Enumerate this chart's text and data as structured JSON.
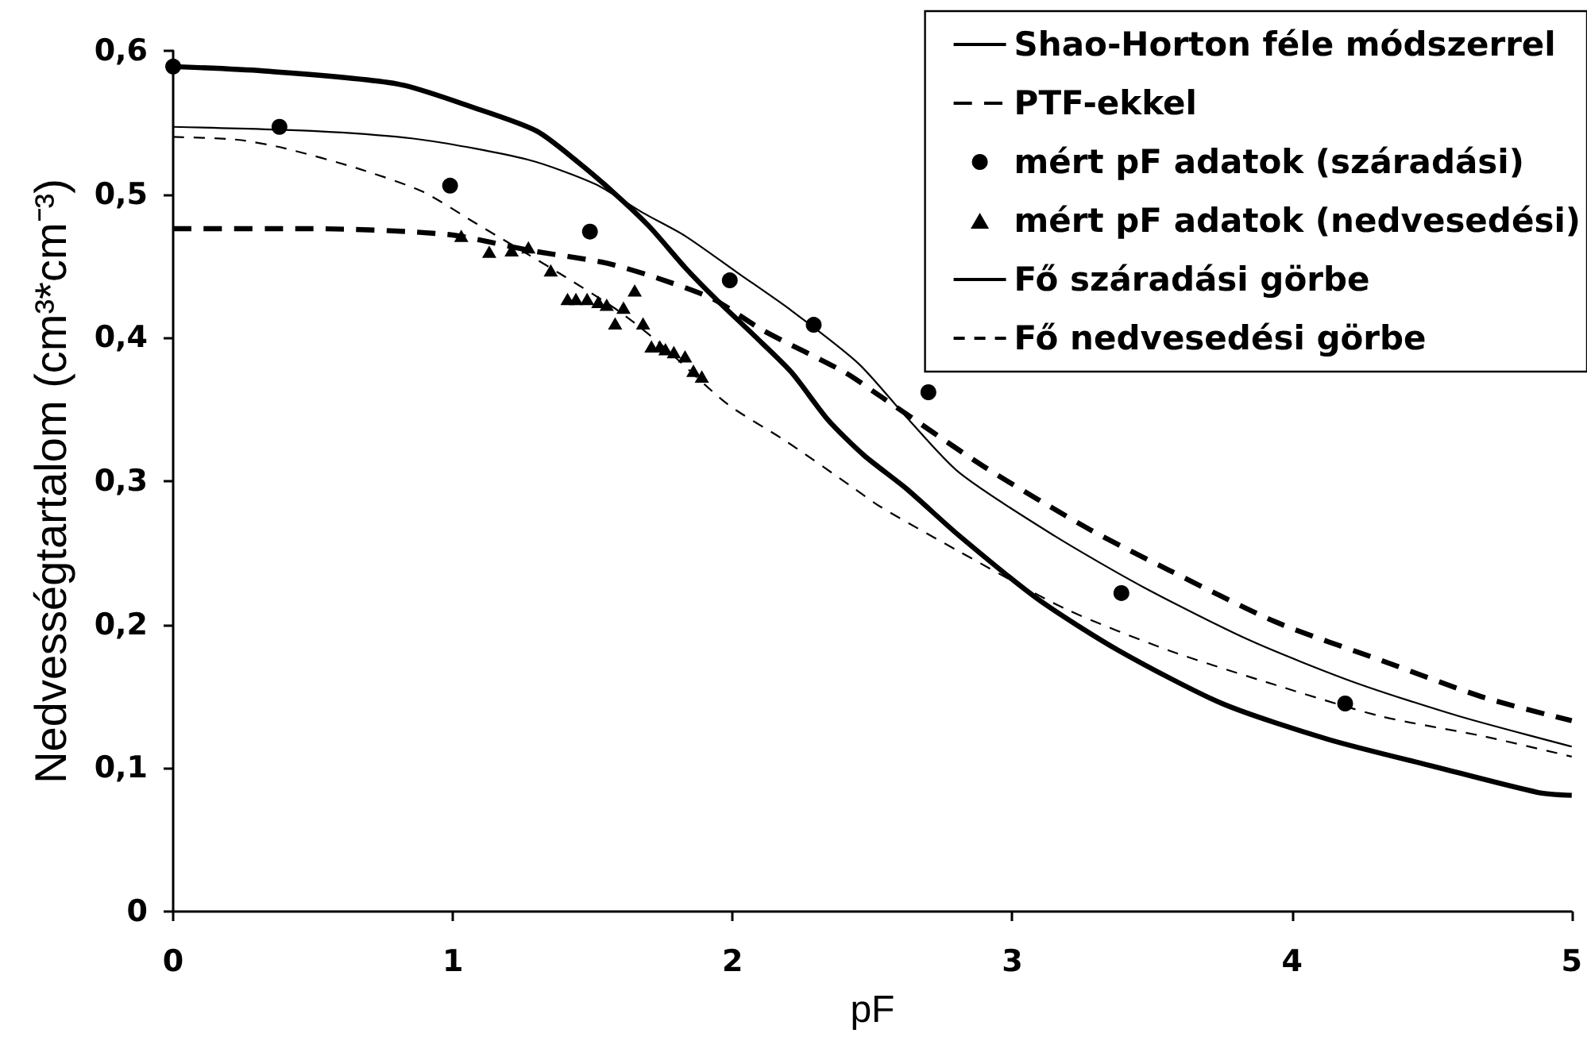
{
  "chart_data": {
    "type": "line",
    "xlabel": "pF",
    "ylabel": "Nedvességtartalom (cm³*cm⁻³)",
    "xlim": [
      0,
      5
    ],
    "xticks": [
      0,
      1,
      2,
      3,
      4,
      5
    ],
    "ylim": [
      0,
      0.6
    ],
    "yticks": [
      0,
      {
        "value": 0.1,
        "label": "0,1"
      },
      {
        "value": 0.2,
        "label": "0,2"
      },
      {
        "value": 0.3,
        "label": "0,3"
      },
      {
        "value": 0.4,
        "label": "0,4"
      },
      {
        "value": 0.5,
        "label": "0,5"
      },
      {
        "value": 0.6,
        "label": "0,6"
      }
    ],
    "grid": false,
    "legend": "top right",
    "series": [
      {
        "name": "Shao-Horton féle módszerrel",
        "color": "#000000",
        "line_style": "solid",
        "marker": "none",
        "x": [
          0,
          0.32,
          0.8,
          1.08,
          1.3,
          1.45,
          1.57,
          1.7,
          1.83,
          1.94,
          2.08,
          2.21,
          2.34,
          2.47,
          2.62,
          2.81,
          3.09,
          3.38,
          3.75,
          4.13,
          4.51,
          4.88,
          5
        ],
        "values": [
          0.589,
          0.586,
          0.577,
          0.56,
          0.544,
          0.522,
          0.502,
          0.478,
          0.449,
          0.427,
          0.401,
          0.376,
          0.343,
          0.318,
          0.295,
          0.262,
          0.218,
          0.182,
          0.145,
          0.12,
          0.101,
          0.083,
          0.081
        ]
      },
      {
        "name": "PTF-ekkel",
        "color": "#000000",
        "line_style": "dashed",
        "marker": "none",
        "x": [
          0,
          0.5,
          0.98,
          1.27,
          1.55,
          1.74,
          1.93,
          2.11,
          2.4,
          2.53,
          2.9,
          3.28,
          3.56,
          3.94,
          4.32,
          4.69,
          5
        ],
        "values": [
          0.476,
          0.476,
          0.472,
          0.461,
          0.452,
          0.441,
          0.427,
          0.405,
          0.376,
          0.359,
          0.31,
          0.266,
          0.238,
          0.202,
          0.175,
          0.149,
          0.133
        ]
      },
      {
        "name": "mért pF adatok (száradási)",
        "type": "scatter",
        "color": "#000000",
        "marker": "circle",
        "x": [
          0,
          0.38,
          0.99,
          1.49,
          1.99,
          2.29,
          2.7,
          3.39,
          4.19
        ],
        "values": [
          0.589,
          0.547,
          0.506,
          0.474,
          0.44,
          0.409,
          0.362,
          0.222,
          0.145
        ]
      },
      {
        "name": "mért pF adatok (nedvesedési)",
        "type": "scatter",
        "color": "#000000",
        "marker": "triangle",
        "x": [
          1.03,
          1.13,
          1.21,
          1.27,
          1.35,
          1.41,
          1.44,
          1.48,
          1.52,
          1.55,
          1.58,
          1.61,
          1.65,
          1.68,
          1.71,
          1.74,
          1.76,
          1.79,
          1.83,
          1.86,
          1.89
        ],
        "values": [
          0.471,
          0.46,
          0.461,
          0.463,
          0.447,
          0.427,
          0.427,
          0.427,
          0.425,
          0.423,
          0.41,
          0.421,
          0.433,
          0.41,
          0.394,
          0.394,
          0.392,
          0.39,
          0.387,
          0.377,
          0.373
        ]
      },
      {
        "name": "Fő száradási görbe",
        "color": "#000000",
        "line_style": "solid",
        "marker": "none",
        "x": [
          0,
          0.51,
          0.89,
          1.27,
          1.51,
          1.68,
          1.83,
          2.02,
          2.21,
          2.45,
          2.62,
          2.81,
          3.15,
          3.47,
          3.85,
          4.22,
          4.6,
          5
        ],
        "values": [
          0.547,
          0.544,
          0.538,
          0.524,
          0.507,
          0.487,
          0.471,
          0.445,
          0.419,
          0.382,
          0.345,
          0.306,
          0.262,
          0.226,
          0.189,
          0.16,
          0.136,
          0.115
        ]
      },
      {
        "name": "Fő nedvesedési görbe",
        "color": "#000000",
        "line_style": "dashed",
        "marker": "none",
        "x": [
          0,
          0.23,
          0.4,
          0.66,
          0.89,
          1.08,
          1.38,
          1.59,
          1.74,
          1.98,
          2.19,
          2.42,
          2.53,
          2.81,
          3.19,
          3.56,
          3.94,
          4.32,
          4.69,
          5
        ],
        "values": [
          0.54,
          0.538,
          0.532,
          0.518,
          0.502,
          0.48,
          0.445,
          0.419,
          0.396,
          0.354,
          0.328,
          0.297,
          0.282,
          0.251,
          0.211,
          0.182,
          0.158,
          0.136,
          0.122,
          0.108
        ]
      }
    ]
  }
}
